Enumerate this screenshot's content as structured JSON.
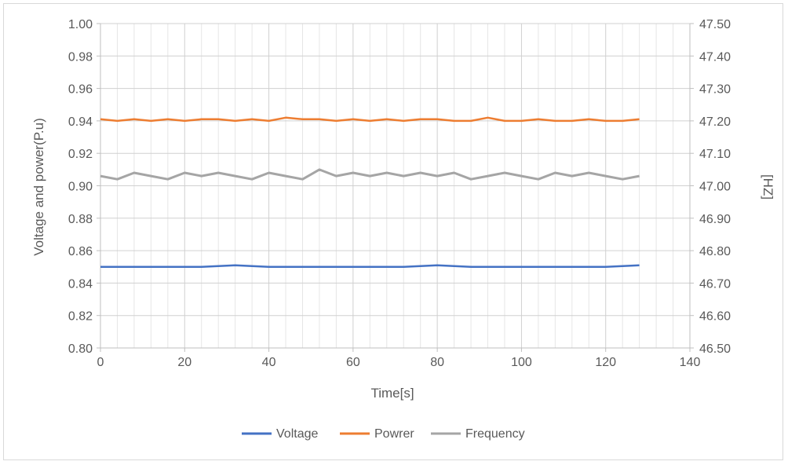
{
  "chart_data": {
    "type": "line",
    "xlabel": "Time[s]",
    "ylabel": "Voltage and power(P.u)",
    "y2label": "[HZ]",
    "xlim": [
      0,
      140
    ],
    "ylim": [
      0.8,
      1.0
    ],
    "y2lim": [
      46.5,
      47.5
    ],
    "xticks": [
      "0",
      "20",
      "40",
      "60",
      "80",
      "100",
      "120",
      "140"
    ],
    "yticks": [
      "0.80",
      "0.82",
      "0.84",
      "0.86",
      "0.88",
      "0.90",
      "0.92",
      "0.94",
      "0.96",
      "0.98",
      "1.00"
    ],
    "y2ticks": [
      "46.50",
      "46.60",
      "46.70",
      "46.80",
      "46.90",
      "47.00",
      "47.10",
      "47.20",
      "47.30",
      "47.40",
      "47.50"
    ],
    "grid": true,
    "legend_position": "bottom",
    "series": [
      {
        "name": "Voltage",
        "color": "#4472c4",
        "axis": "left",
        "x": [
          0,
          8,
          16,
          24,
          32,
          40,
          48,
          56,
          64,
          72,
          80,
          88,
          96,
          104,
          112,
          120,
          128
        ],
        "values": [
          0.85,
          0.85,
          0.85,
          0.85,
          0.851,
          0.85,
          0.85,
          0.85,
          0.85,
          0.85,
          0.851,
          0.85,
          0.85,
          0.85,
          0.85,
          0.85,
          0.851
        ]
      },
      {
        "name": "Powrer",
        "color": "#ed7d31",
        "axis": "left",
        "x": [
          0,
          4,
          8,
          12,
          16,
          20,
          24,
          28,
          32,
          36,
          40,
          44,
          48,
          52,
          56,
          60,
          64,
          68,
          72,
          76,
          80,
          84,
          88,
          92,
          96,
          100,
          104,
          108,
          112,
          116,
          120,
          124,
          128
        ],
        "values": [
          0.941,
          0.94,
          0.941,
          0.94,
          0.941,
          0.94,
          0.941,
          0.941,
          0.94,
          0.941,
          0.94,
          0.942,
          0.941,
          0.941,
          0.94,
          0.941,
          0.94,
          0.941,
          0.94,
          0.941,
          0.941,
          0.94,
          0.94,
          0.942,
          0.94,
          0.94,
          0.941,
          0.94,
          0.94,
          0.941,
          0.94,
          0.94,
          0.941
        ]
      },
      {
        "name": "Frequency",
        "color": "#a5a5a5",
        "axis": "right",
        "x": [
          0,
          4,
          8,
          12,
          16,
          20,
          24,
          28,
          32,
          36,
          40,
          44,
          48,
          52,
          56,
          60,
          64,
          68,
          72,
          76,
          80,
          84,
          88,
          92,
          96,
          100,
          104,
          108,
          112,
          116,
          120,
          124,
          128
        ],
        "values": [
          47.03,
          47.02,
          47.04,
          47.03,
          47.02,
          47.04,
          47.03,
          47.04,
          47.03,
          47.02,
          47.04,
          47.03,
          47.02,
          47.05,
          47.03,
          47.04,
          47.03,
          47.04,
          47.03,
          47.04,
          47.03,
          47.04,
          47.02,
          47.03,
          47.04,
          47.03,
          47.02,
          47.04,
          47.03,
          47.04,
          47.03,
          47.02,
          47.03
        ]
      }
    ]
  }
}
